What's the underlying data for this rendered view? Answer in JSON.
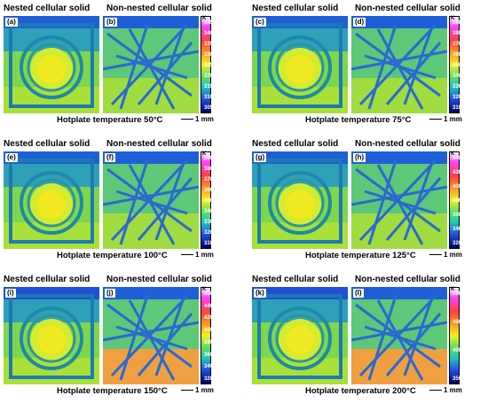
{
  "panels": [
    {
      "id": "a",
      "left_label": "(a)",
      "right_label": "(b)",
      "header_nested": "Nested cellular solid",
      "header_non_nested": "Non-nested cellular solid",
      "caption": "Hotplate temperature 50°C",
      "scale": "1 mm",
      "unit": "K",
      "ticks": [
        "345",
        "340",
        "335",
        "330",
        "325",
        "320",
        "315",
        "310",
        "305"
      ]
    },
    {
      "id": "c",
      "left_label": "(c)",
      "right_label": "(d)",
      "header_nested": "Nested cellular solid",
      "header_non_nested": "Non-nested cellular solid",
      "caption": "Hotplate temperature 75°C",
      "scale": "1 mm",
      "unit": "K",
      "ticks": [
        "390",
        "380",
        "370",
        "360",
        "350",
        "340",
        "330",
        "320",
        "310"
      ]
    },
    {
      "id": "e",
      "left_label": "(e)",
      "right_label": "(f)",
      "header_nested": "Nested cellular solid",
      "header_non_nested": "Non-nested cellular solid",
      "caption": "Hotplate temperature 100°C",
      "scale": "1 mm",
      "unit": "K",
      "ticks": [
        "390",
        "380",
        "370",
        "360",
        "350",
        "340",
        "330",
        "320",
        "310"
      ]
    },
    {
      "id": "g",
      "left_label": "(g)",
      "right_label": "(h)",
      "header_nested": "Nested cellular solid",
      "header_non_nested": "Non-nested cellular solid",
      "caption": "Hotplate temperature 125°C",
      "scale": "1 mm",
      "unit": "K",
      "ticks": [
        "440",
        "420",
        "400",
        "380",
        "360",
        "340",
        "320"
      ]
    },
    {
      "id": "i",
      "left_label": "(i)",
      "right_label": "(j)",
      "header_nested": "Nested cellular solid",
      "header_non_nested": "Non-nested cellular solid",
      "caption": "Hotplate temperature 150°C",
      "scale": "1 mm",
      "unit": "K",
      "ticks": [
        "450",
        "440",
        "420",
        "400",
        "380",
        "360",
        "340",
        "320"
      ]
    },
    {
      "id": "k",
      "left_label": "(k)",
      "right_label": "(l)",
      "header_nested": "Nested cellular solid",
      "header_non_nested": "Non-nested cellular solid",
      "caption": "Hotplate temperature 200°C",
      "scale": "1 mm",
      "unit": "K",
      "ticks": [
        "500",
        "450",
        "400",
        "350"
      ]
    }
  ],
  "colors": {
    "hot": "#e8f000",
    "warm": "#7ee04a",
    "cool": "#25c0a0",
    "cold": "#1a4fd0",
    "colorbar_top": "#ff00ff",
    "colorbar_bottom": "#000066"
  }
}
